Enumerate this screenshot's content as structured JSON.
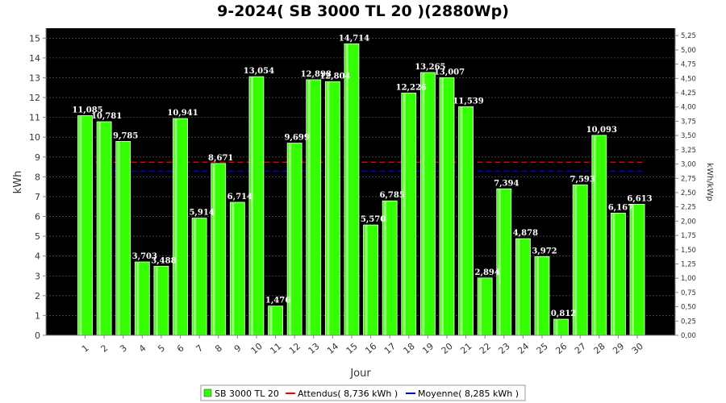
{
  "chart_data": {
    "type": "bar",
    "title": "9-2024( SB 3000 TL 20 )(2880Wp)",
    "xlabel": "Jour",
    "ylabel": "kWh",
    "ylabel_right": "kWh/kWp",
    "ylim": [
      0,
      15.5
    ],
    "yticks": [
      "0",
      "1",
      "2",
      "3",
      "4",
      "5",
      "6",
      "7",
      "8",
      "9",
      "10",
      "11",
      "12",
      "13",
      "14",
      "15"
    ],
    "ylim_right": [
      0,
      5.38
    ],
    "yticks_right": [
      "0,00",
      "0,25",
      "0,50",
      "0,75",
      "1,00",
      "1,25",
      "1,50",
      "1,75",
      "2,00",
      "2,25",
      "2,50",
      "2,75",
      "3,00",
      "3,25",
      "3,50",
      "3,75",
      "4,00",
      "4,25",
      "4,50",
      "4,75",
      "5,00",
      "5,25"
    ],
    "categories": [
      "1",
      "2",
      "3",
      "4",
      "5",
      "6",
      "7",
      "8",
      "9",
      "10",
      "11",
      "12",
      "13",
      "14",
      "15",
      "16",
      "17",
      "18",
      "19",
      "20",
      "21",
      "22",
      "23",
      "24",
      "25",
      "26",
      "27",
      "28",
      "29",
      "30"
    ],
    "series": [
      {
        "name": "SB 3000 TL 20",
        "color": "#33ff00",
        "values": [
          11.085,
          10.781,
          9.785,
          3.703,
          3.488,
          10.941,
          5.914,
          8.671,
          6.714,
          13.054,
          1.476,
          9.699,
          12.898,
          12.804,
          14.714,
          5.57,
          6.785,
          12.226,
          13.265,
          13.007,
          11.539,
          2.894,
          7.394,
          4.878,
          3.972,
          0.812,
          7.593,
          10.093,
          6.167,
          6.613
        ],
        "labels": [
          "11,085",
          "10,781",
          "9,785",
          "3,703",
          "3,488",
          "10,941",
          "5,914",
          "8,671",
          "6,714",
          "13,054",
          "1,476",
          "9,699",
          "12,898",
          "12,804",
          "14,714",
          "5,570",
          "6,785",
          "12,226",
          "13,265",
          "13,007",
          "11,539",
          "2,894",
          "7,394",
          "4,878",
          "3,972",
          "0,812",
          "7,593",
          "10,093",
          "6,167",
          "6,613"
        ]
      }
    ],
    "reference_lines": [
      {
        "name": "Attendus( 8,736 kWh )",
        "value": 8.736,
        "color": "#ff0000"
      },
      {
        "name": "Moyenne( 8,285 kWh )",
        "value": 8.285,
        "color": "#0000ff"
      }
    ],
    "grid": true,
    "legend_position": "bottom-center",
    "plot_background": "#000000"
  }
}
